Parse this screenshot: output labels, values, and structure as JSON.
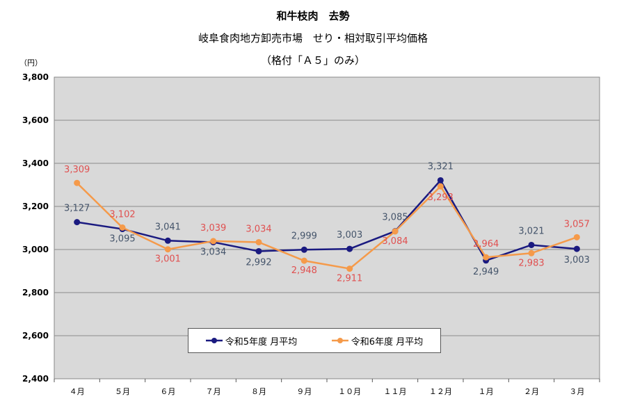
{
  "title": "和牛枝肉　去勢",
  "subtitle": "岐阜食肉地方卸売市場　せり・相対取引平均価格",
  "subtitle2": "（格付「Ａ５」のみ）",
  "unit": "（円）",
  "chart_data": {
    "type": "line",
    "categories": [
      "４月",
      "５月",
      "６月",
      "７月",
      "８月",
      "９月",
      "１０月",
      "１１月",
      "１２月",
      "１月",
      "２月",
      "３月"
    ],
    "series": [
      {
        "name": "令和5年度 月平均",
        "color": "#1a1a80",
        "values": [
          3127,
          3095,
          3041,
          3034,
          2992,
          2999,
          3003,
          3085,
          3321,
          2949,
          3021,
          3003
        ],
        "labels": [
          "3,127",
          "3,095",
          "3,041",
          "3,034",
          "2,992",
          "2,999",
          "3,003",
          "3,085",
          "3,321",
          "2,949",
          "3,021",
          "3,003"
        ]
      },
      {
        "name": "令和6年度 月平均",
        "color": "#f59a4a",
        "values": [
          3309,
          3102,
          3001,
          3039,
          3034,
          2948,
          2911,
          3084,
          3293,
          2964,
          2983,
          3057
        ],
        "labels": [
          "3,309",
          "3,102",
          "3,001",
          "3,039",
          "3,034",
          "2,948",
          "2,911",
          "3,084",
          "3,293",
          "2,964",
          "2,983",
          "3,057"
        ]
      }
    ],
    "ylim": [
      2400,
      3800
    ],
    "yticks": [
      2400,
      2600,
      2800,
      3000,
      3200,
      3400,
      3600,
      3800
    ],
    "ytick_labels": [
      "2,400",
      "2,600",
      "2,800",
      "3,000",
      "3,200",
      "3,400",
      "3,600",
      "3,800"
    ],
    "grid": true,
    "legend_position": "bottom-center"
  }
}
